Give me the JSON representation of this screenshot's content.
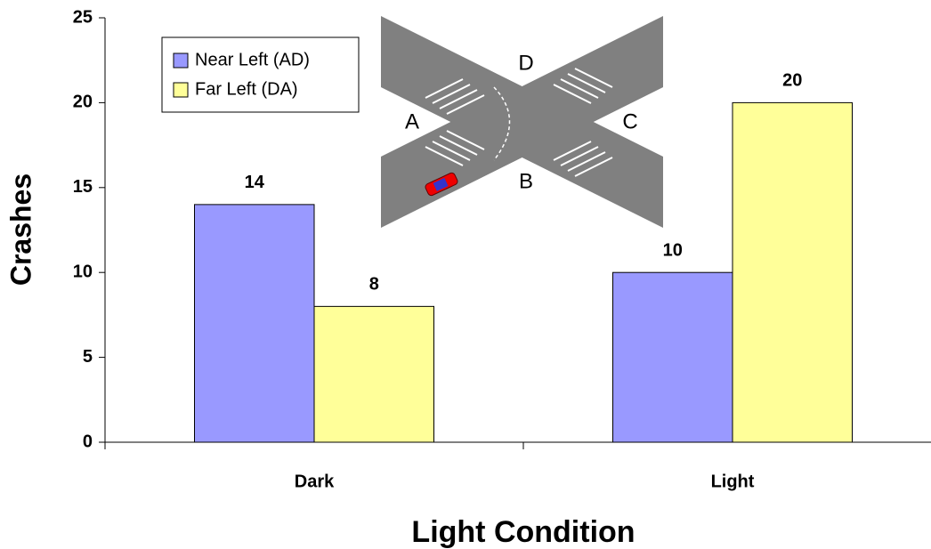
{
  "chart_data": {
    "type": "bar",
    "x_label": "Light Condition",
    "y_label": "Crashes",
    "categories": [
      "Dark",
      "Light"
    ],
    "series": [
      {
        "name": "Near Left (AD)",
        "color": "#9999ff",
        "values": [
          14,
          10
        ]
      },
      {
        "name": "Far Left (DA)",
        "color": "#ffff99",
        "values": [
          8,
          20
        ]
      }
    ],
    "ylim": [
      0,
      25
    ],
    "yticks": [
      0,
      5,
      10,
      15,
      20,
      25
    ],
    "grid": false,
    "legend": "upper-left"
  },
  "inset": {
    "labels": [
      "A",
      "B",
      "C",
      "D"
    ]
  }
}
